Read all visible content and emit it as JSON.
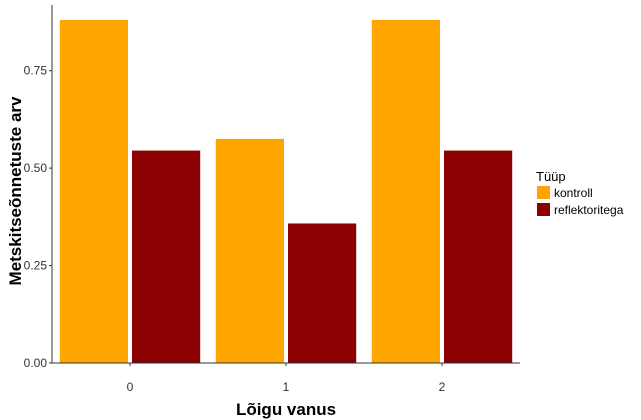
{
  "chart_data": {
    "type": "bar",
    "categories": [
      "0",
      "1",
      "2"
    ],
    "series": [
      {
        "name": "kontroll",
        "color": "#FFA500",
        "values": [
          0.88,
          0.575,
          0.88
        ]
      },
      {
        "name": "reflektoritega",
        "color": "#8B0000",
        "values": [
          0.545,
          0.358,
          0.545
        ]
      }
    ],
    "xlabel": "Lõigu vanus",
    "ylabel": "Metskitseõnnetuste arv",
    "ylim": [
      0,
      0.88
    ],
    "yticks": [
      "0.00",
      "0.25",
      "0.50",
      "0.75"
    ],
    "ytick_values": [
      0,
      0.25,
      0.5,
      0.75
    ],
    "legend": {
      "title": "Tüüp",
      "position": "right"
    },
    "grid": false
  }
}
